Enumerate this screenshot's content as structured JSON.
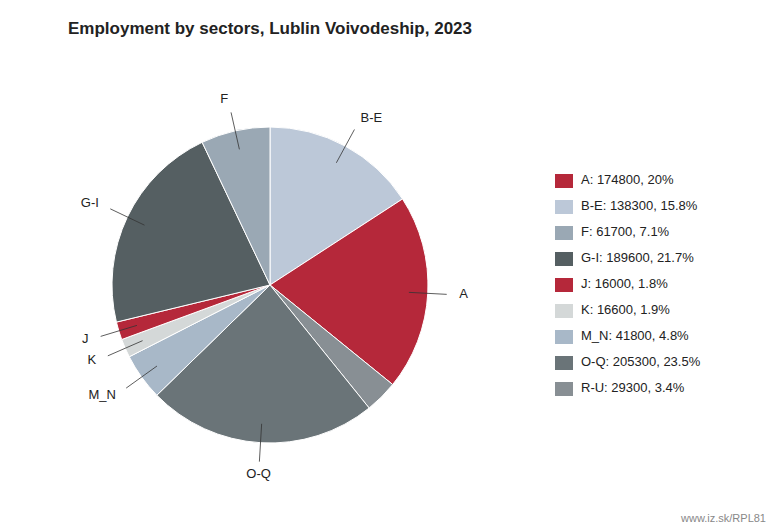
{
  "chart_data": {
    "type": "pie",
    "title": "Employment by sectors, Lublin Voivodeship, 2023",
    "categories": [
      "B-E",
      "A",
      null,
      "O-Q",
      "M_N",
      "K",
      "J",
      "G-I",
      "F"
    ],
    "values": [
      138300,
      174800,
      29300,
      205300,
      41800,
      16600,
      16000,
      189600,
      61700
    ],
    "colors": [
      "#bcc8d8",
      "#b5283a",
      "#888f94",
      "#6a7478",
      "#a8b8c8",
      "#d4d8d8",
      "#b5283a",
      "#555f62",
      "#9aa8b4"
    ],
    "legend": "right",
    "legend_labels": [
      "A: 174800, 20%",
      "B-E: 138300, 15.8%",
      "F: 61700, 7.1%",
      "G-I: 189600, 21.7%",
      "J: 16000, 1.8%",
      "K: 16600, 1.9%",
      "M_N: 41800, 4.8%",
      "O-Q: 205300, 23.5%",
      "R-U: 29300, 3.4%"
    ],
    "legend_colors": [
      "#b5283a",
      "#bcc8d8",
      "#9aa8b4",
      "#555f62",
      "#b5283a",
      "#d4d8d8",
      "#a8b8c8",
      "#6a7478",
      "#888f94"
    ],
    "watermark": "www.iz.sk/RPL81"
  }
}
